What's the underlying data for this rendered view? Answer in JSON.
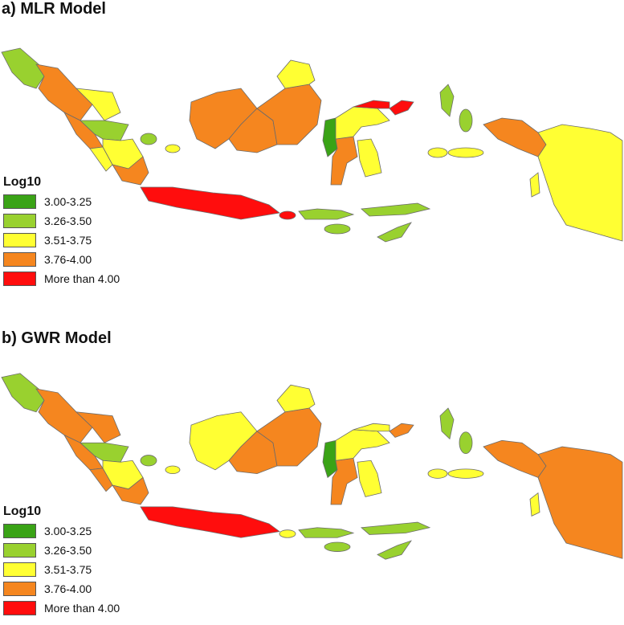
{
  "legend_colors": {
    "c1": "#3aa316",
    "c2": "#99d12f",
    "c3": "#ffff33",
    "c4": "#f5861f",
    "c5": "#ff0d0d"
  },
  "legend": {
    "title": "Log10",
    "items": [
      {
        "label": "3.00-3.25",
        "color": "#3aa316"
      },
      {
        "label": "3.26-3.50",
        "color": "#99d12f"
      },
      {
        "label": "3.51-3.75",
        "color": "#ffff33"
      },
      {
        "label": "3.76-4.00",
        "color": "#f5861f"
      },
      {
        "label": "More than 4.00",
        "color": "#ff0d0d"
      }
    ]
  },
  "panels": [
    {
      "title": "a) MLR Model",
      "regions": {
        "aceh": "c2",
        "north_sumatra": "c4",
        "west_sumatra": "c4",
        "riau": "c3",
        "jambi": "c2",
        "south_sumatra": "c3",
        "bengkulu": "c3",
        "lampung": "c4",
        "bangka": "c2",
        "riau_islands": "c3",
        "west_kalimantan": "c4",
        "central_kalimantan": "c4",
        "east_kalimantan": "c4",
        "north_kalimantan": "c3",
        "java": "c5",
        "bali": "c5",
        "ntb": "c2",
        "ntt": "c2",
        "west_sulawesi": "c1",
        "south_sulawesi": "c4",
        "central_sulawesi": "c3",
        "southeast_sulawesi": "c3",
        "north_sulawesi": "c5",
        "gorontalo": "c5",
        "maluku_north": "c2",
        "maluku": "c3",
        "west_papua": "c4",
        "papua": "c3"
      }
    },
    {
      "title": "b) GWR Model",
      "regions": {
        "aceh": "c2",
        "north_sumatra": "c4",
        "west_sumatra": "c4",
        "riau": "c4",
        "jambi": "c2",
        "south_sumatra": "c3",
        "bengkulu": "c4",
        "lampung": "c4",
        "bangka": "c2",
        "riau_islands": "c3",
        "west_kalimantan": "c3",
        "central_kalimantan": "c4",
        "east_kalimantan": "c4",
        "north_kalimantan": "c3",
        "java": "c5",
        "bali": "c3",
        "ntb": "c2",
        "ntt": "c2",
        "west_sulawesi": "c1",
        "south_sulawesi": "c4",
        "central_sulawesi": "c3",
        "southeast_sulawesi": "c3",
        "north_sulawesi": "c4",
        "gorontalo": "c3",
        "maluku_north": "c2",
        "maluku": "c3",
        "west_papua": "c4",
        "papua": "c4"
      }
    }
  ]
}
